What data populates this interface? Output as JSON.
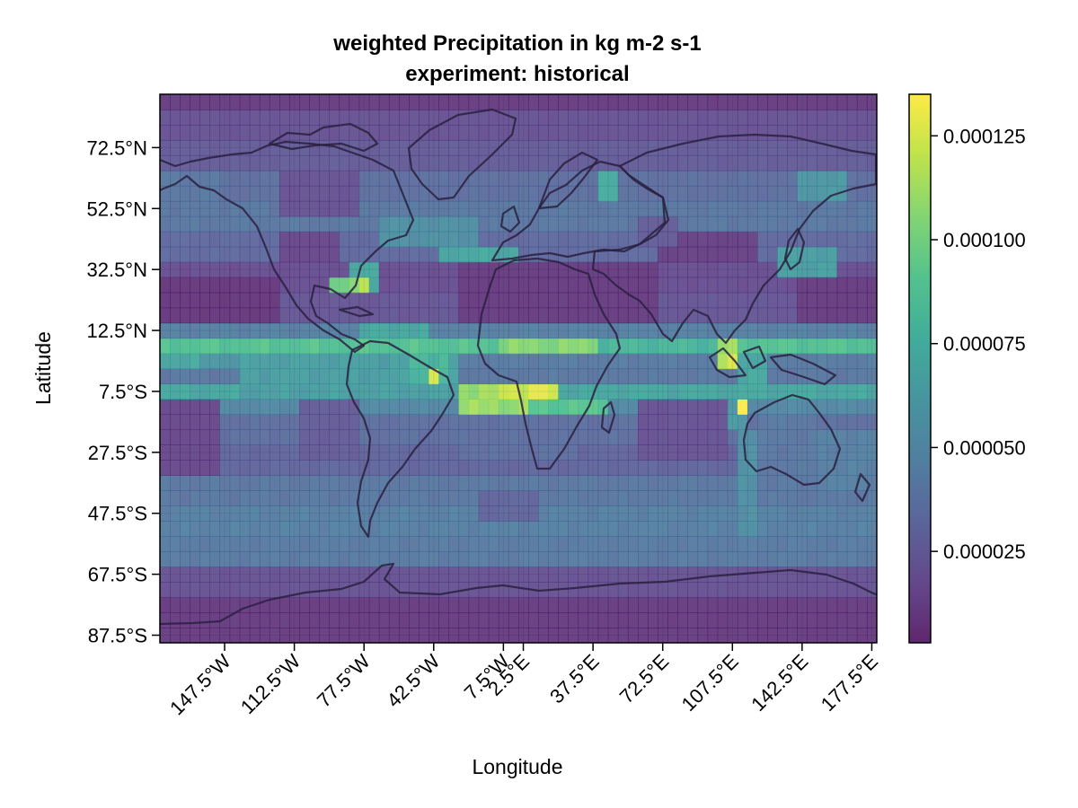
{
  "chart_data": {
    "type": "heatmap",
    "title": "weighted Precipitation in kg m-2 s-1",
    "subtitle": "experiment: historical",
    "xlabel": "Longitude",
    "ylabel": "Latitude",
    "xlim": [
      -180,
      180
    ],
    "ylim": [
      -90,
      90
    ],
    "x_ticks": [
      {
        "value": -147.5,
        "label": "147.5°W"
      },
      {
        "value": -112.5,
        "label": "112.5°W"
      },
      {
        "value": -77.5,
        "label": "77.5°W"
      },
      {
        "value": -42.5,
        "label": "42.5°W"
      },
      {
        "value": -7.5,
        "label": "7.5°W"
      },
      {
        "value": 2.5,
        "label": "2.5°E"
      },
      {
        "value": 37.5,
        "label": "37.5°E"
      },
      {
        "value": 72.5,
        "label": "72.5°E"
      },
      {
        "value": 107.5,
        "label": "107.5°E"
      },
      {
        "value": 142.5,
        "label": "142.5°E"
      },
      {
        "value": 177.5,
        "label": "177.5°E"
      }
    ],
    "y_ticks": [
      {
        "value": 72.5,
        "label": "72.5°N"
      },
      {
        "value": 52.5,
        "label": "52.5°N"
      },
      {
        "value": 32.5,
        "label": "32.5°N"
      },
      {
        "value": 12.5,
        "label": "12.5°N"
      },
      {
        "value": -7.5,
        "label": "7.5°S"
      },
      {
        "value": -27.5,
        "label": "27.5°S"
      },
      {
        "value": -47.5,
        "label": "47.5°S"
      },
      {
        "value": -67.5,
        "label": "67.5°S"
      },
      {
        "value": -87.5,
        "label": "87.5°S"
      }
    ],
    "colorbar": {
      "colormap": "viridis",
      "range": [
        3e-06,
        0.000135
      ],
      "ticks": [
        {
          "value": 2.5e-05,
          "label": "0.000025"
        },
        {
          "value": 5e-05,
          "label": "0.000050"
        },
        {
          "value": 7.5e-05,
          "label": "0.000075"
        },
        {
          "value": 0.0001,
          "label": "0.000100"
        },
        {
          "value": 0.000125,
          "label": "0.000125"
        }
      ]
    },
    "grid": {
      "lon_step": 5,
      "lat_step": 5
    },
    "zonal_bands": [
      {
        "lat_min": 85,
        "lat_max": 90,
        "value": 1e-05
      },
      {
        "lat_min": 75,
        "lat_max": 85,
        "value": 2e-05
      },
      {
        "lat_min": 65,
        "lat_max": 75,
        "value": 2.5e-05
      },
      {
        "lat_min": 55,
        "lat_max": 65,
        "value": 3.5e-05
      },
      {
        "lat_min": 45,
        "lat_max": 55,
        "value": 4e-05
      },
      {
        "lat_min": 35,
        "lat_max": 45,
        "value": 3.2e-05
      },
      {
        "lat_min": 25,
        "lat_max": 35,
        "value": 1.8e-05
      },
      {
        "lat_min": 15,
        "lat_max": 25,
        "value": 2.2e-05
      },
      {
        "lat_min": 10,
        "lat_max": 15,
        "value": 4.5e-05
      },
      {
        "lat_min": 5,
        "lat_max": 10,
        "value": 8.8e-05
      },
      {
        "lat_min": 0,
        "lat_max": 5,
        "value": 4.2e-05
      },
      {
        "lat_min": -5,
        "lat_max": 0,
        "value": 4e-05
      },
      {
        "lat_min": -10,
        "lat_max": -5,
        "value": 7e-05
      },
      {
        "lat_min": -15,
        "lat_max": -10,
        "value": 5e-05
      },
      {
        "lat_min": -25,
        "lat_max": -15,
        "value": 3.5e-05
      },
      {
        "lat_min": -35,
        "lat_max": -25,
        "value": 3e-05
      },
      {
        "lat_min": -45,
        "lat_max": -35,
        "value": 4e-05
      },
      {
        "lat_min": -55,
        "lat_max": -45,
        "value": 4.5e-05
      },
      {
        "lat_min": -65,
        "lat_max": -55,
        "value": 4.2e-05
      },
      {
        "lat_min": -75,
        "lat_max": -65,
        "value": 2e-05
      },
      {
        "lat_min": -90,
        "lat_max": -75,
        "value": 1e-05
      }
    ],
    "regions": [
      {
        "lon_min": -180,
        "lon_max": -120,
        "lat_min": 15,
        "lat_max": 30,
        "value": 8e-06
      },
      {
        "lon_min": 140,
        "lon_max": 180,
        "lat_min": 15,
        "lat_max": 30,
        "value": 1e-05
      },
      {
        "lon_min": -120,
        "lon_max": -90,
        "lat_min": 35,
        "lat_max": 45,
        "value": 1.5e-05
      },
      {
        "lon_min": -30,
        "lon_max": 70,
        "lat_min": 15,
        "lat_max": 35,
        "value": 1e-05
      },
      {
        "lon_min": 70,
        "lon_max": 120,
        "lat_min": 35,
        "lat_max": 45,
        "value": 1.2e-05
      },
      {
        "lon_min": -120,
        "lon_max": -80,
        "lat_min": 50,
        "lat_max": 65,
        "value": 2e-05
      },
      {
        "lon_min": -180,
        "lon_max": -150,
        "lat_min": 55,
        "lat_max": 65,
        "value": 4e-05
      },
      {
        "lon_min": -70,
        "lon_max": -20,
        "lat_min": 40,
        "lat_max": 50,
        "value": 5.5e-05
      },
      {
        "lon_min": -85,
        "lon_max": -70,
        "lat_min": 25,
        "lat_max": 35,
        "value": 7e-05
      },
      {
        "lon_min": -95,
        "lon_max": -80,
        "lat_min": 25,
        "lat_max": 30,
        "value": 0.0001
      },
      {
        "lon_min": -80,
        "lon_max": -75,
        "lat_min": 25,
        "lat_max": 30,
        "value": 0.00012
      },
      {
        "lon_min": -40,
        "lon_max": 0,
        "lat_min": 35,
        "lat_max": 40,
        "value": 7e-05
      },
      {
        "lon_min": 40,
        "lon_max": 50,
        "lat_min": 55,
        "lat_max": 65,
        "value": 7.5e-05
      },
      {
        "lon_min": 60,
        "lon_max": 80,
        "lat_min": 40,
        "lat_max": 50,
        "value": 2.5e-05
      },
      {
        "lon_min": 130,
        "lon_max": 160,
        "lat_min": 30,
        "lat_max": 40,
        "value": 6.5e-05
      },
      {
        "lon_min": 140,
        "lon_max": 165,
        "lat_min": 55,
        "lat_max": 65,
        "value": 6e-05
      },
      {
        "lon_min": -80,
        "lon_max": -45,
        "lat_min": 10,
        "lat_max": 15,
        "value": 7e-05
      },
      {
        "lon_min": -10,
        "lon_max": 40,
        "lat_min": 5,
        "lat_max": 10,
        "value": 0.000105
      },
      {
        "lon_min": 40,
        "lon_max": 100,
        "lat_min": 5,
        "lat_max": 10,
        "value": 8e-05
      },
      {
        "lon_min": 100,
        "lon_max": 110,
        "lat_min": 0,
        "lat_max": 10,
        "value": 0.00011
      },
      {
        "lon_min": 105,
        "lon_max": 110,
        "lat_min": -2,
        "lat_max": 5,
        "value": 0.00013
      },
      {
        "lon_min": 110,
        "lon_max": 125,
        "lat_min": -10,
        "lat_max": 5,
        "value": 7e-05
      },
      {
        "lon_min": -180,
        "lon_max": -160,
        "lat_min": 0,
        "lat_max": 5,
        "value": 7e-05
      },
      {
        "lon_min": -160,
        "lon_max": -140,
        "lat_min": 0,
        "lat_max": 5,
        "value": 6e-05
      },
      {
        "lon_min": -140,
        "lon_max": -30,
        "lat_min": -10,
        "lat_max": 5,
        "value": 6.5e-05
      },
      {
        "lon_min": -55,
        "lon_max": -35,
        "lat_min": -5,
        "lat_max": 5,
        "value": 8e-05
      },
      {
        "lon_min": -45,
        "lon_max": -40,
        "lat_min": -5,
        "lat_max": 0,
        "value": 0.000125
      },
      {
        "lon_min": -30,
        "lon_max": 5,
        "lat_min": -15,
        "lat_max": -5,
        "value": 0.00011
      },
      {
        "lon_min": -10,
        "lon_max": 20,
        "lat_min": -10,
        "lat_max": -5,
        "value": 0.000125
      },
      {
        "lon_min": 5,
        "lon_max": 45,
        "lat_min": -15,
        "lat_max": -10,
        "value": 9e-05
      },
      {
        "lon_min": -180,
        "lon_max": -150,
        "lat_min": -35,
        "lat_max": -10,
        "value": 1.5e-05
      },
      {
        "lon_min": -110,
        "lon_max": -80,
        "lat_min": -30,
        "lat_max": -10,
        "value": 2.5e-05
      },
      {
        "lon_min": 60,
        "lon_max": 105,
        "lat_min": -30,
        "lat_max": -10,
        "value": 2e-05
      },
      {
        "lon_min": 105,
        "lon_max": 115,
        "lat_min": -20,
        "lat_max": -10,
        "value": 6e-05
      },
      {
        "lon_min": 110,
        "lon_max": 115,
        "lat_min": -15,
        "lat_max": -10,
        "value": 0.00013
      },
      {
        "lon_min": 110,
        "lon_max": 120,
        "lat_min": -55,
        "lat_max": -20,
        "value": 5.5e-05
      },
      {
        "lon_min": 120,
        "lon_max": 150,
        "lat_min": -35,
        "lat_max": -15,
        "value": 4e-05
      },
      {
        "lon_min": 150,
        "lon_max": 180,
        "lat_min": -40,
        "lat_max": -20,
        "value": 4.5e-05
      },
      {
        "lon_min": -30,
        "lon_max": 30,
        "lat_min": -30,
        "lat_max": -15,
        "value": 3.5e-05
      },
      {
        "lon_min": -20,
        "lon_max": 10,
        "lat_min": -50,
        "lat_max": -40,
        "value": 3e-05
      }
    ],
    "coastlines": "outlines of the continents drawn over the grid"
  }
}
